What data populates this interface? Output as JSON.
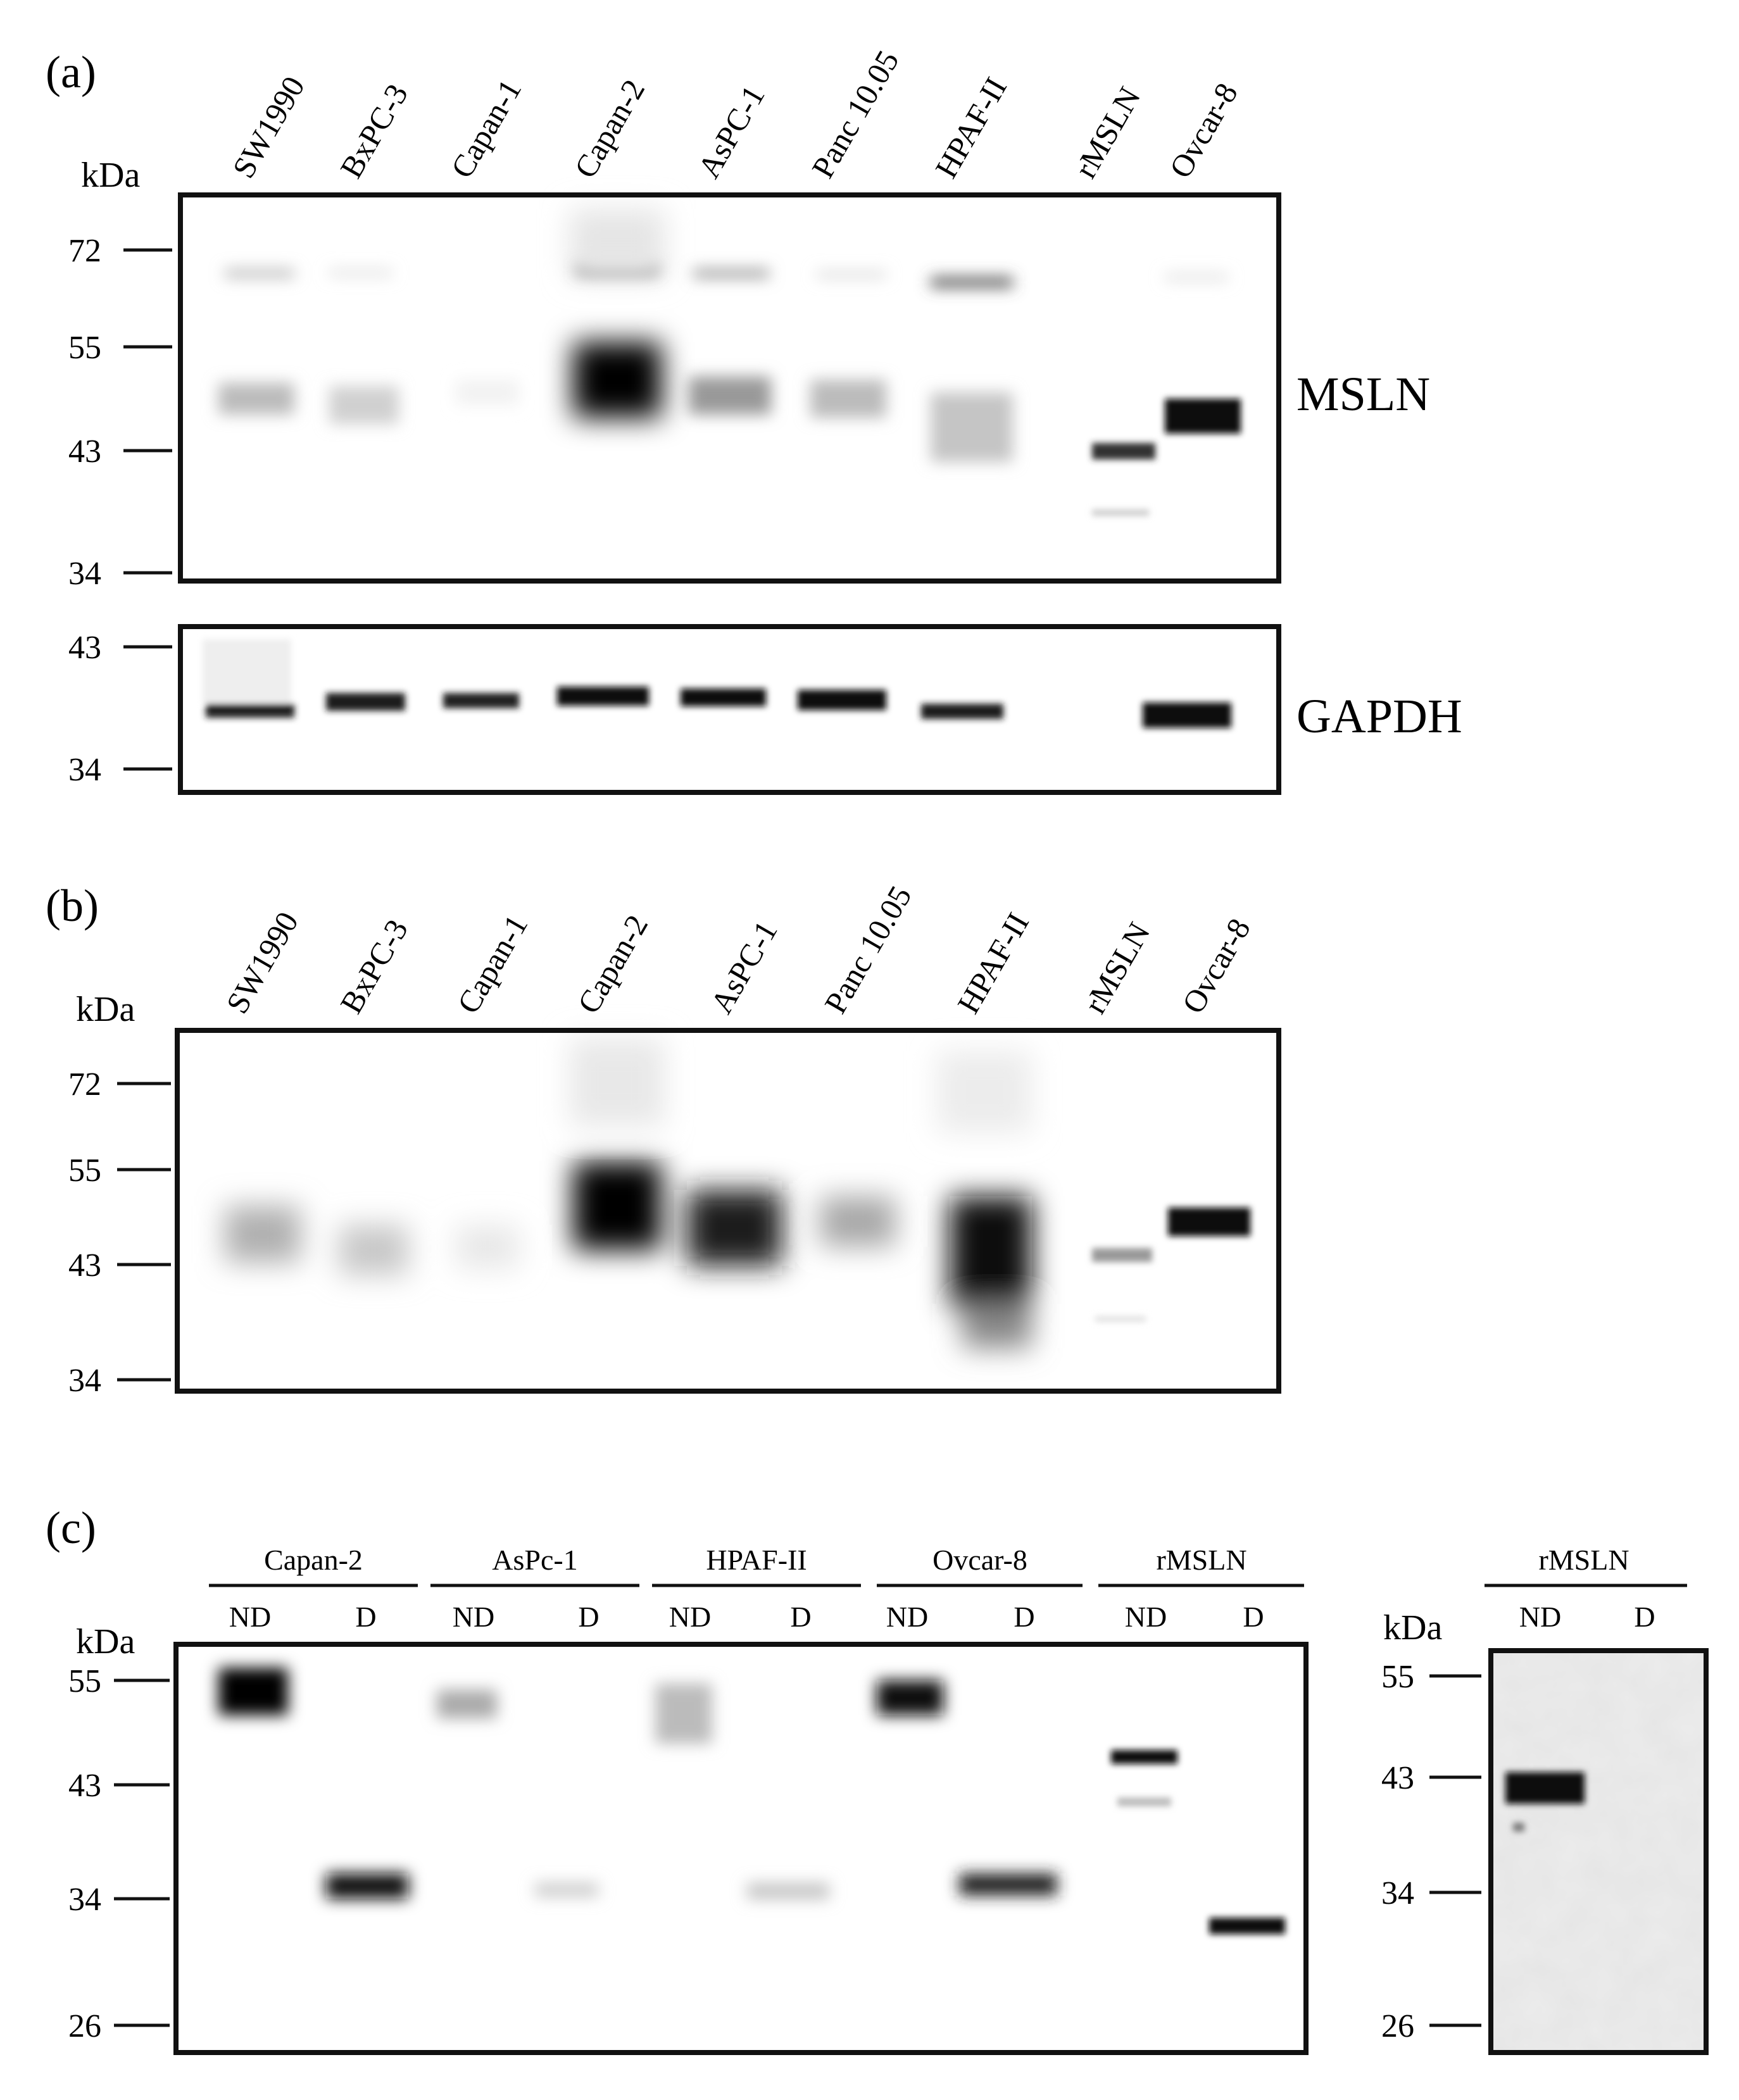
{
  "panels": {
    "a": {
      "label": "(a)",
      "kda": "kDa",
      "lanes": [
        "SW1990",
        "BxPC-3",
        "Capan-1",
        "Capan-2",
        "AsPC-1",
        "Panc 10.05",
        "HPAF-II",
        "rMSLN",
        "Ovcar-8"
      ],
      "msln_label": "MSLN",
      "msln_ticks": [
        "72",
        "55",
        "43",
        "34"
      ],
      "gapdh_label": "GAPDH",
      "gapdh_ticks": [
        "43",
        "34"
      ]
    },
    "b": {
      "label": "(b)",
      "kda": "kDa",
      "lanes": [
        "SW1990",
        "BxPC-3",
        "Capan-1",
        "Capan-2",
        "AsPC-1",
        "Panc 10.05",
        "HPAF-II",
        "rMSLN",
        "Ovcar-8"
      ],
      "ticks": [
        "72",
        "55",
        "43",
        "34"
      ]
    },
    "c": {
      "label": "(c)",
      "kda": "kDa",
      "groups": [
        "Capan-2",
        "AsPc-1",
        "HPAF-II",
        "Ovcar-8",
        "rMSLN"
      ],
      "sub_nd": "ND",
      "sub_d": "D",
      "ticks": [
        "55",
        "43",
        "34",
        "26"
      ],
      "right": {
        "kda": "kDa",
        "group": "rMSLN",
        "sub_nd": "ND",
        "sub_d": "D",
        "ticks": [
          "55",
          "43",
          "34",
          "26"
        ]
      }
    }
  }
}
